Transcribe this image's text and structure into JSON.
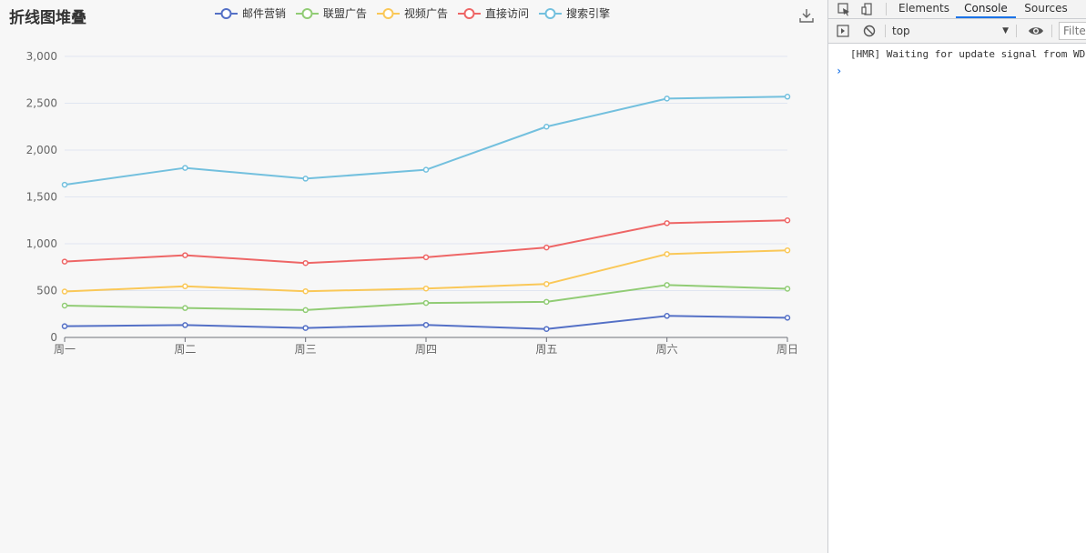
{
  "chart": {
    "title": "折线图堆叠",
    "legend": [
      {
        "name": "邮件营销",
        "color": "#5470c6"
      },
      {
        "name": "联盟广告",
        "color": "#91cc75"
      },
      {
        "name": "视频广告",
        "color": "#fac858"
      },
      {
        "name": "直接访问",
        "color": "#ee6666"
      },
      {
        "name": "搜索引擎",
        "color": "#73c0de"
      }
    ],
    "download_icon": "download-icon"
  },
  "chart_data": {
    "type": "line",
    "stacked": true,
    "categories": [
      "周一",
      "周二",
      "周三",
      "周四",
      "周五",
      "周六",
      "周日"
    ],
    "y_ticks": [
      "0",
      "500",
      "1,000",
      "1,500",
      "2,000",
      "2,500",
      "3,000"
    ],
    "ylim": [
      0,
      3000
    ],
    "series": [
      {
        "name": "邮件营销",
        "color": "#5470c6",
        "values": [
          120,
          132,
          101,
          134,
          90,
          230,
          210
        ]
      },
      {
        "name": "联盟广告",
        "color": "#91cc75",
        "values": [
          220,
          182,
          191,
          234,
          290,
          330,
          310
        ]
      },
      {
        "name": "视频广告",
        "color": "#fac858",
        "values": [
          150,
          232,
          201,
          154,
          190,
          330,
          410
        ]
      },
      {
        "name": "直接访问",
        "color": "#ee6666",
        "values": [
          320,
          332,
          301,
          334,
          390,
          330,
          320
        ]
      },
      {
        "name": "搜索引擎",
        "color": "#73c0de",
        "values": [
          820,
          932,
          901,
          934,
          1290,
          1330,
          1320
        ]
      }
    ],
    "grid": true
  },
  "devtools": {
    "tabs": [
      {
        "label": "Elements",
        "active": false
      },
      {
        "label": "Console",
        "active": true
      },
      {
        "label": "Sources",
        "active": false
      }
    ],
    "context": "top",
    "filter_placeholder": "Filter",
    "console_message": "[HMR] Waiting for update signal from WDS...",
    "prompt_symbol": "›"
  }
}
